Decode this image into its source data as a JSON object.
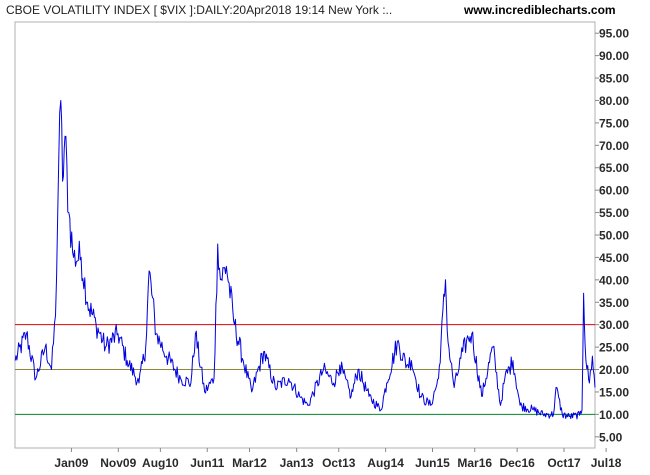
{
  "header": {
    "title": "CBOE VOLATILITY INDEX [ $VIX ]:DAILY:20Apr2018 19:14 New York :..",
    "site": "www.incrediblecharts.com"
  },
  "chart_data": {
    "type": "line",
    "title": "CBOE VOLATILITY INDEX [ $VIX ]:DAILY:20Apr2018 19:14 New York :..",
    "xlabel": "",
    "ylabel": "",
    "xlim": [
      "2008-01-01",
      "2018-04-20"
    ],
    "ylim": [
      2.5,
      97.5
    ],
    "y_axis_position": "right",
    "x_ticks": [
      "Jan09",
      "Nov09",
      "Aug10",
      "Jun11",
      "Mar12",
      "Jan13",
      "Oct13",
      "Aug14",
      "Jun15",
      "Mar16",
      "Dec16",
      "Oct17",
      "Jul18"
    ],
    "y_ticks": [
      "5.00",
      "10.00",
      "15.00",
      "20.00",
      "25.00",
      "30.00",
      "35.00",
      "40.00",
      "45.00",
      "50.00",
      "55.00",
      "60.00",
      "65.00",
      "70.00",
      "75.00",
      "80.00",
      "85.00",
      "90.00",
      "95.00"
    ],
    "reference_lines": [
      {
        "y": 30,
        "color": "#e0000a"
      },
      {
        "y": 20,
        "color": "#8a8a3a"
      },
      {
        "y": 10,
        "color": "#008a2a"
      }
    ],
    "series_color": "#0000e0",
    "series": [
      {
        "x": [
          "2008-01-02",
          "2008-03-15",
          "2008-05-15",
          "2008-07-15",
          "2008-08-25",
          "2008-09-20",
          "2008-10-10",
          "2008-10-24",
          "2008-11-05",
          "2008-11-20",
          "2008-12-15",
          "2009-01-15",
          "2009-03-05",
          "2009-04-15",
          "2009-06-10",
          "2009-08-10",
          "2009-10-30",
          "2009-12-28",
          "2010-03-15",
          "2010-04-28",
          "2010-05-20",
          "2010-07-05",
          "2010-09-10",
          "2010-12-10",
          "2011-02-15",
          "2011-03-16",
          "2011-05-15",
          "2011-07-15",
          "2011-08-08",
          "2011-08-25",
          "2011-10-03",
          "2011-11-25",
          "2012-01-20",
          "2012-03-15",
          "2012-06-01",
          "2012-08-15",
          "2012-11-10",
          "2013-01-20",
          "2013-03-15",
          "2013-06-24",
          "2013-08-30",
          "2013-10-08",
          "2013-12-20",
          "2014-02-03",
          "2014-04-15",
          "2014-07-01",
          "2014-08-08",
          "2014-10-15",
          "2014-12-16",
          "2015-01-15",
          "2015-03-15",
          "2015-05-20",
          "2015-07-10",
          "2015-08-24",
          "2015-09-10",
          "2015-10-20",
          "2015-12-14",
          "2016-01-20",
          "2016-02-11",
          "2016-04-15",
          "2016-06-27",
          "2016-08-15",
          "2016-09-12",
          "2016-11-04",
          "2016-12-20",
          "2017-03-15",
          "2017-05-18",
          "2017-07-25",
          "2017-08-10",
          "2017-09-20",
          "2017-11-03",
          "2018-01-10",
          "2018-01-26",
          "2018-02-05",
          "2018-02-20",
          "2018-03-15",
          "2018-04-03",
          "2018-04-20"
        ],
        "values": [
          22,
          28,
          18,
          25,
          20,
          32,
          65,
          80,
          62,
          72,
          55,
          45,
          45,
          35,
          30,
          25,
          28,
          22,
          17,
          25,
          42,
          28,
          23,
          18,
          17,
          28,
          15,
          18,
          48,
          40,
          43,
          30,
          22,
          15,
          24,
          16,
          18,
          14,
          12,
          20,
          17,
          21,
          14,
          20,
          14,
          11,
          17,
          26,
          21,
          22,
          14,
          12,
          18,
          40,
          26,
          16,
          24,
          27,
          28,
          14,
          25,
          12,
          18,
          22,
          12,
          11,
          10,
          10,
          16,
          10,
          9.5,
          9.8,
          11,
          37,
          22,
          17,
          23,
          16
        ]
      }
    ]
  }
}
